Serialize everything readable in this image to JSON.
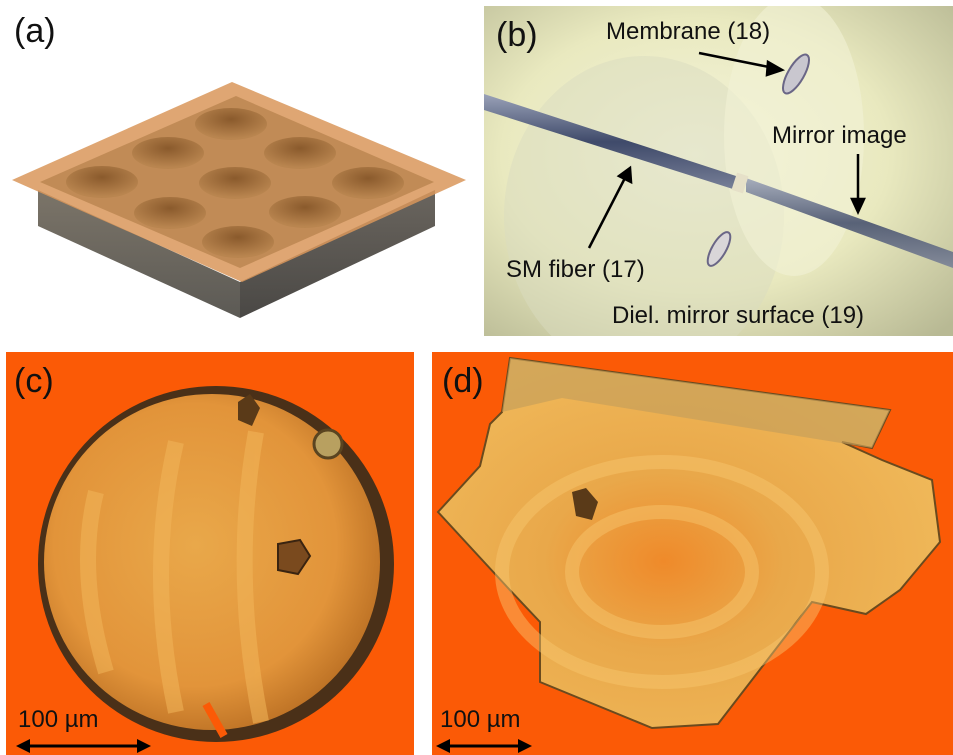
{
  "panels": {
    "a": {
      "label": "(a)"
    },
    "b": {
      "label": "(b)",
      "annotations": {
        "membrane": "Membrane (18)",
        "mirror_image": "Mirror image",
        "sm_fiber": "SM fiber (17)",
        "mirror_surface": "Diel. mirror surface (19)"
      }
    },
    "c": {
      "label": "(c)",
      "scale_bar": "100 µm"
    },
    "d": {
      "label": "(d)",
      "scale_bar": "100 µm"
    }
  },
  "colors": {
    "substrate_orange": "#fb5a06",
    "membrane_gold": "#e89c3a",
    "wafer_top": "#c88a4e",
    "wafer_side": "#6f6a62",
    "photo_b_bg": "#eef0c8"
  }
}
